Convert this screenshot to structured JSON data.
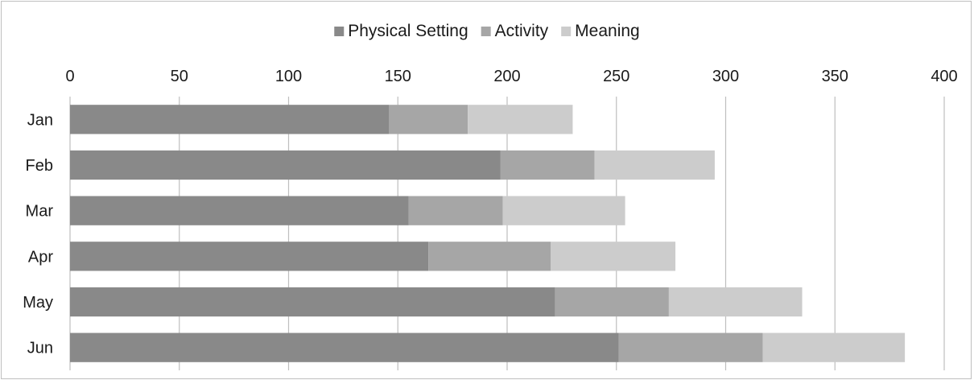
{
  "chart_data": {
    "type": "bar",
    "orientation": "horizontal",
    "stacked": true,
    "categories": [
      "Jan",
      "Feb",
      "Mar",
      "Apr",
      "May",
      "Jun"
    ],
    "series": [
      {
        "name": "Physical Setting",
        "color": "#898989",
        "values": [
          146,
          197,
          155,
          164,
          222,
          251
        ]
      },
      {
        "name": "Activity",
        "color": "#a6a6a6",
        "values": [
          36,
          43,
          43,
          56,
          52,
          66
        ]
      },
      {
        "name": "Meaning",
        "color": "#cccccc",
        "values": [
          48,
          55,
          56,
          57,
          61,
          65
        ]
      }
    ],
    "xlim": [
      0,
      400
    ],
    "x_ticks": [
      "0",
      "50",
      "100",
      "150",
      "200",
      "250",
      "300",
      "350",
      "400"
    ],
    "x_axis_position": "top",
    "grid": true,
    "legend_position": "top"
  }
}
